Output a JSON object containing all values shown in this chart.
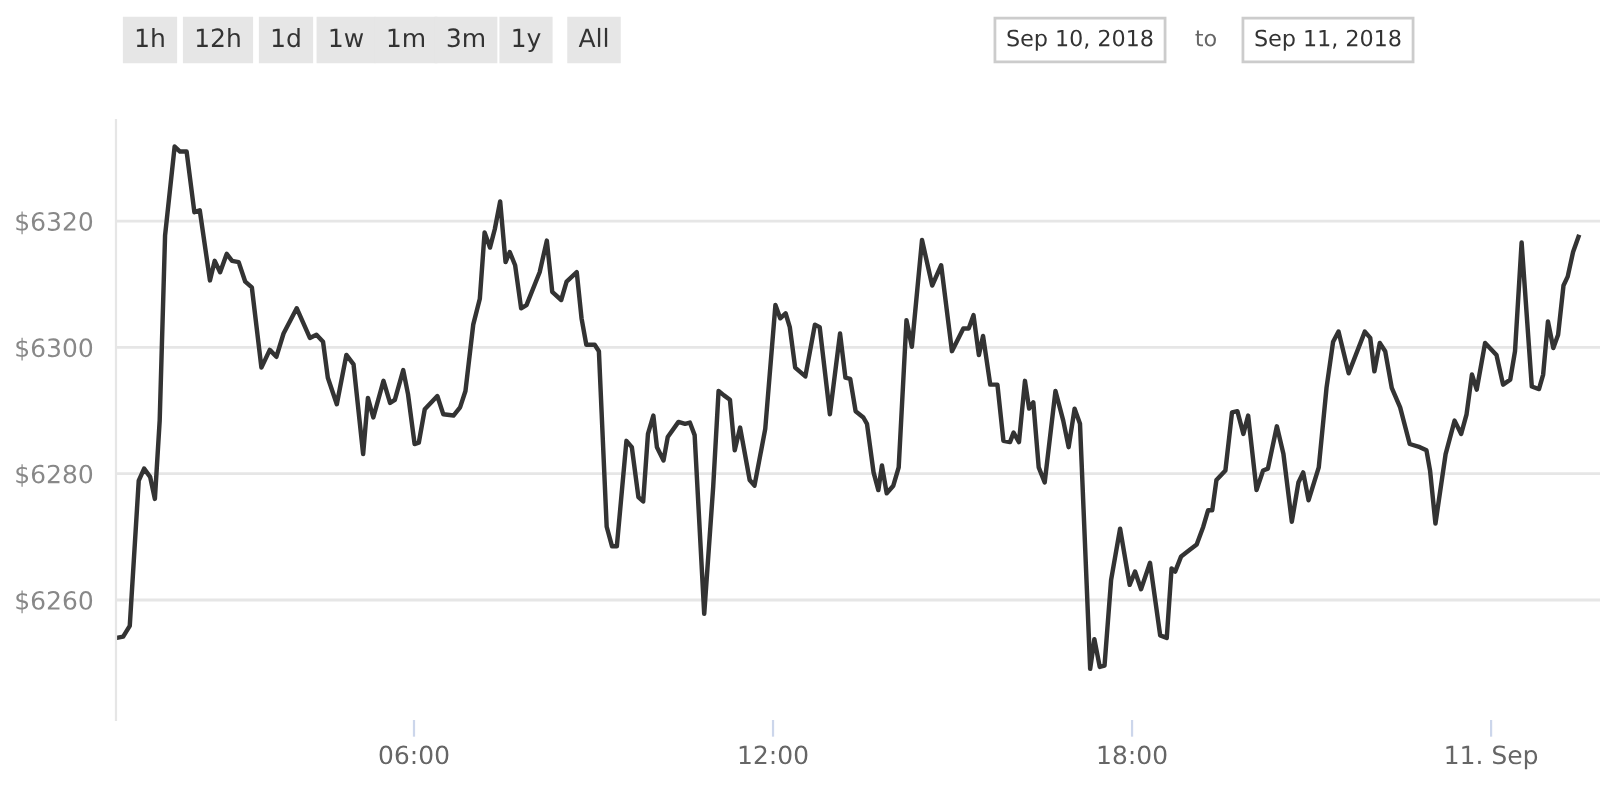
{
  "chart_data": {
    "type": "line",
    "annotations": [
      "1h",
      "12h",
      "1d",
      "1w",
      "1m",
      "3m",
      "1y",
      "All",
      "Sep 10, 2018",
      "to",
      "Sep 11, 2018"
    ],
    "x": [
      1.03,
      1.14,
      1.25,
      1.4,
      1.49,
      1.59,
      1.67,
      1.75,
      1.84,
      2.0,
      2.09,
      2.2,
      2.33,
      2.42,
      2.59,
      2.67,
      2.76,
      2.87,
      2.96,
      3.07,
      3.18,
      3.29,
      3.45,
      3.59,
      3.7,
      3.82,
      4.04,
      4.26,
      4.37,
      4.48,
      4.56,
      4.71,
      4.87,
      4.99,
      5.15,
      5.23,
      5.32,
      5.49,
      5.6,
      5.68,
      5.82,
      5.9,
      6.01,
      6.08,
      6.18,
      6.39,
      6.49,
      6.66,
      6.77,
      6.86,
      6.99,
      7.1,
      7.18,
      7.27,
      7.35,
      7.44,
      7.53,
      7.6,
      7.69,
      7.79,
      7.88,
      8.1,
      8.22,
      8.31,
      8.46,
      8.55,
      8.72,
      8.8,
      8.88,
      9.02,
      9.09,
      9.22,
      9.31,
      9.39,
      9.55,
      9.64,
      9.75,
      9.83,
      9.91,
      10.0,
      10.06,
      10.17,
      10.24,
      10.42,
      10.53,
      10.61,
      10.69,
      10.85,
      11.0,
      11.09,
      11.18,
      11.28,
      11.36,
      11.45,
      11.61,
      11.69,
      11.87,
      12.04,
      12.12,
      12.21,
      12.28,
      12.37,
      12.54,
      12.7,
      12.78,
      12.95,
      13.12,
      13.21,
      13.29,
      13.38,
      13.51,
      13.57,
      13.68,
      13.76,
      13.82,
      13.9,
      14.01,
      14.1,
      14.23,
      14.32,
      14.49,
      14.66,
      14.81,
      14.99,
      15.18,
      15.27,
      15.35,
      15.44,
      15.51,
      15.63,
      15.75,
      15.85,
      15.96,
      16.02,
      16.11,
      16.21,
      16.28,
      16.35,
      16.44,
      16.54,
      16.72,
      16.85,
      16.94,
      17.04,
      17.13,
      17.3,
      17.37,
      17.46,
      17.54,
      17.65,
      17.8,
      17.96,
      18.05,
      18.15,
      18.3,
      18.47,
      18.58,
      18.66,
      18.72,
      18.82,
      18.97,
      19.08,
      19.19,
      19.27,
      19.34,
      19.41,
      19.56,
      19.67,
      19.76,
      19.86,
      19.94,
      20.08,
      20.19,
      20.27,
      20.42,
      20.53,
      20.67,
      20.78,
      20.86,
      20.95,
      21.12,
      21.25,
      21.36,
      21.45,
      21.62,
      21.89,
      21.98,
      22.05,
      22.14,
      22.23,
      22.34,
      22.48,
      22.64,
      22.81,
      22.92,
      22.98,
      23.07,
      23.24,
      23.39,
      23.5,
      23.59,
      23.68,
      23.76,
      23.9,
      24.09,
      24.2,
      24.32,
      24.4,
      24.51,
      24.68,
      24.8,
      24.87,
      24.95,
      25.04,
      25.12,
      25.21,
      25.28,
      25.37,
      25.46
    ],
    "series": [
      {
        "color": "#333333",
        "values": [
          6254.0,
          6254.2,
          6255.9,
          6278.9,
          6280.8,
          6279.5,
          6276.0,
          6288.4,
          6317.7,
          6331.8,
          6331.0,
          6331.0,
          6321.4,
          6321.7,
          6310.6,
          6313.7,
          6311.9,
          6314.8,
          6313.7,
          6313.5,
          6310.4,
          6309.5,
          6296.8,
          6299.6,
          6298.5,
          6302.2,
          6306.2,
          6301.5,
          6302.0,
          6300.9,
          6295.2,
          6291.0,
          6298.8,
          6297.3,
          6283.1,
          6292.0,
          6288.9,
          6294.7,
          6291.2,
          6291.7,
          6296.4,
          6292.6,
          6284.7,
          6284.9,
          6290.2,
          6292.3,
          6289.4,
          6289.2,
          6290.5,
          6293.1,
          6303.6,
          6307.7,
          6318.2,
          6315.8,
          6318.7,
          6323.1,
          6313.5,
          6315.1,
          6313.0,
          6306.2,
          6306.7,
          6311.9,
          6316.9,
          6308.8,
          6307.5,
          6310.4,
          6311.9,
          6304.6,
          6300.4,
          6300.4,
          6299.4,
          6271.6,
          6268.5,
          6268.5,
          6285.2,
          6284.2,
          6276.3,
          6275.6,
          6286.3,
          6289.2,
          6284.2,
          6282.1,
          6285.8,
          6288.2,
          6287.9,
          6288.1,
          6286.1,
          6257.8,
          6277.9,
          6293.1,
          6292.4,
          6291.7,
          6283.7,
          6287.3,
          6279.0,
          6278.1,
          6287.1,
          6306.7,
          6304.6,
          6305.4,
          6303.2,
          6296.8,
          6295.4,
          6303.6,
          6303.2,
          6289.4,
          6302.2,
          6295.2,
          6295.0,
          6289.9,
          6288.9,
          6287.9,
          6280.2,
          6277.4,
          6281.3,
          6276.9,
          6278.1,
          6281.0,
          6304.3,
          6300.1,
          6317.0,
          6309.8,
          6313.0,
          6299.4,
          6303.0,
          6303.0,
          6305.1,
          6298.8,
          6301.8,
          6294.1,
          6294.1,
          6285.2,
          6285.0,
          6286.5,
          6285.0,
          6294.7,
          6290.3,
          6291.3,
          6281.0,
          6278.6,
          6293.1,
          6288.4,
          6284.2,
          6290.3,
          6287.9,
          6249.1,
          6253.8,
          6249.4,
          6249.6,
          6263.2,
          6271.3,
          6262.4,
          6264.5,
          6261.7,
          6265.9,
          6254.4,
          6254.0,
          6265.0,
          6264.5,
          6266.9,
          6268.0,
          6268.8,
          6271.6,
          6274.2,
          6274.2,
          6279.0,
          6280.5,
          6289.7,
          6289.9,
          6286.3,
          6289.2,
          6277.4,
          6280.5,
          6280.8,
          6287.5,
          6283.1,
          6272.4,
          6278.6,
          6280.2,
          6275.8,
          6281.0,
          6293.6,
          6300.9,
          6302.5,
          6295.9,
          6302.5,
          6301.5,
          6296.2,
          6300.7,
          6299.4,
          6293.6,
          6290.5,
          6284.7,
          6284.2,
          6283.7,
          6280.5,
          6272.1,
          6283.1,
          6288.4,
          6286.3,
          6289.4,
          6295.7,
          6293.3,
          6300.7,
          6298.8,
          6294.1,
          6294.9,
          6299.4,
          6316.6,
          6293.8,
          6293.4,
          6295.7,
          6304.1,
          6299.9,
          6302.0,
          6309.8,
          6311.2,
          6315.1,
          6317.5
        ]
      }
    ],
    "xlim": [
      1.02,
      25.82
    ],
    "xticks": [
      {
        "value": 6,
        "label": "06:00"
      },
      {
        "value": 12,
        "label": "12:00"
      },
      {
        "value": 18,
        "label": "18:00"
      },
      {
        "value": 24,
        "label": "11. Sep"
      }
    ],
    "ylim": [
      6241,
      6336
    ],
    "yticks": [
      {
        "value": 6260,
        "label": "$6260"
      },
      {
        "value": 6280,
        "label": "$6280"
      },
      {
        "value": 6300,
        "label": "$6300"
      },
      {
        "value": 6320,
        "label": "$6320"
      }
    ],
    "grid": "y",
    "line_style": "solid",
    "marker": "none"
  }
}
